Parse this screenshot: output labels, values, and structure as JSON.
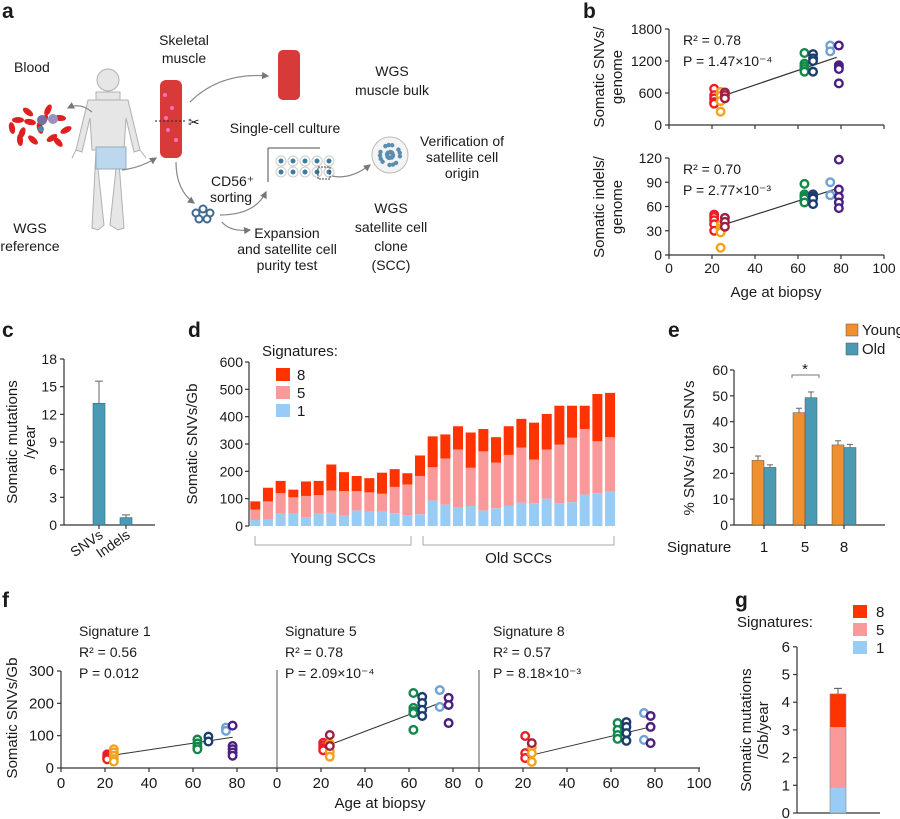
{
  "panel_labels": {
    "a": "a",
    "b": "b",
    "c": "c",
    "d": "d",
    "e": "e",
    "f": "f",
    "g": "g"
  },
  "panel_a": {
    "skeletal_muscle": [
      "Skeletal",
      "muscle"
    ],
    "blood": "Blood",
    "wgs_muscle_bulk": [
      "WGS",
      "muscle bulk"
    ],
    "single_cell_culture": "Single-cell culture",
    "verification": [
      "Verification of",
      "satellite cell",
      "origin"
    ],
    "cd56_sorting": [
      "CD56⁺",
      "sorting"
    ],
    "wgs_scc": [
      "WGS",
      "satellite cell",
      "clone",
      "(SCC)"
    ],
    "wgs_reference": [
      "WGS",
      "reference"
    ],
    "expansion": [
      "Expansion",
      "and satellite cell",
      "purity test"
    ]
  },
  "colors": {
    "donor_21y_a": "#ee1c25",
    "donor_24y": "#f7a11a",
    "donor_26y": "#9e1f3f",
    "donor_63y": "#13874a",
    "donor_67y": "#1a3c6e",
    "donor_75y": "#6ea1d4",
    "donor_79y": "#4b1f82",
    "signature_8": "#ff3300",
    "signature_5": "#f9999a",
    "signature_1": "#99ccf5",
    "bar_c": "#4a9ab3",
    "young": "#ef8f30",
    "old": "#4a9ab3"
  },
  "chart_data": [
    {
      "id": "b_snvs",
      "type": "scatter",
      "ylabel": [
        "Somatic SNVs/",
        "genome"
      ],
      "xlabel": "",
      "xlim": [
        0,
        100
      ],
      "ylim": [
        0,
        1800
      ],
      "yticks": [
        "0",
        "600",
        "1200",
        "1800"
      ],
      "stats": [
        "R² = 0.78",
        "P = 1.47×10⁻⁴"
      ],
      "fit": [
        [
          26,
          560
        ],
        [
          78,
          1270
        ]
      ],
      "groups": [
        {
          "age": 21,
          "color": "#ee1c25",
          "values": [
            680,
            560,
            500,
            430,
            400
          ]
        },
        {
          "age": 24,
          "color": "#f7a11a",
          "values": [
            620,
            550,
            450,
            250
          ]
        },
        {
          "age": 26,
          "color": "#9e1f3f",
          "values": [
            610,
            560,
            500
          ]
        },
        {
          "age": 63,
          "color": "#13874a",
          "values": [
            1350,
            1150,
            1100,
            1050,
            1000
          ]
        },
        {
          "age": 67,
          "color": "#1a3c6e",
          "values": [
            1330,
            1250,
            1200,
            1000
          ]
        },
        {
          "age": 75,
          "color": "#6ea1d4",
          "values": [
            1490,
            1380
          ]
        },
        {
          "age": 79,
          "color": "#4b1f82",
          "values": [
            1490,
            1120,
            1080,
            1050,
            780
          ]
        }
      ]
    },
    {
      "id": "b_indels",
      "type": "scatter",
      "ylabel": [
        "Somatic indels/",
        "genome"
      ],
      "xlabel": "Age at biopsy",
      "xlim": [
        0,
        100
      ],
      "ylim": [
        0,
        120
      ],
      "yticks": [
        "0",
        "30",
        "60",
        "90",
        "120"
      ],
      "xticks": [
        "0",
        "20",
        "40",
        "60",
        "80",
        "100"
      ],
      "stats": [
        "R² = 0.70",
        "P = 2.77×10⁻³"
      ],
      "fit": [
        [
          26,
          38
        ],
        [
          78,
          82
        ]
      ],
      "groups": [
        {
          "age": 21,
          "color": "#ee1c25",
          "values": [
            50,
            47,
            43,
            38,
            30
          ]
        },
        {
          "age": 24,
          "color": "#f7a11a",
          "values": [
            37,
            33,
            30,
            28,
            9
          ]
        },
        {
          "age": 26,
          "color": "#9e1f3f",
          "values": [
            46,
            41,
            35
          ]
        },
        {
          "age": 63,
          "color": "#13874a",
          "values": [
            88,
            75,
            72,
            70,
            65
          ]
        },
        {
          "age": 67,
          "color": "#1a3c6e",
          "values": [
            75,
            72,
            70,
            63
          ]
        },
        {
          "age": 75,
          "color": "#6ea1d4",
          "values": [
            90,
            74
          ]
        },
        {
          "age": 79,
          "color": "#4b1f82",
          "values": [
            118,
            81,
            72,
            65,
            58
          ]
        }
      ]
    },
    {
      "id": "c",
      "type": "bar",
      "ylabel": [
        "Somatic mutations",
        "/year"
      ],
      "categories": [
        "SNVs",
        "Indels"
      ],
      "values": [
        13.2,
        0.8
      ],
      "error_upper": [
        15.6,
        1.1
      ],
      "ylim": [
        0,
        18
      ],
      "yticks": [
        "0",
        "3",
        "6",
        "9",
        "12",
        "15",
        "18"
      ]
    },
    {
      "id": "d",
      "type": "bar",
      "stacked": true,
      "ylabel": "Somatic SNVs/Gb",
      "legend_title": "Signatures:",
      "ylim": [
        0,
        600
      ],
      "yticks": [
        "0",
        "100",
        "200",
        "300",
        "400",
        "500",
        "600"
      ],
      "groups": [
        {
          "label": "Young SCCs",
          "count": 13
        },
        {
          "label": "Old SCCs",
          "count": 16
        }
      ],
      "series": [
        {
          "name": "1",
          "color": "#99ccf5",
          "values": [
            22,
            23,
            45,
            45,
            32,
            45,
            48,
            38,
            57,
            52,
            55,
            47,
            40,
            43,
            93,
            78,
            68,
            73,
            57,
            65,
            75,
            85,
            83,
            100,
            83,
            87,
            115,
            120,
            128
          ]
        },
        {
          "name": "5",
          "color": "#f9999a",
          "values": [
            38,
            67,
            75,
            60,
            78,
            68,
            82,
            90,
            71,
            71,
            63,
            96,
            112,
            140,
            122,
            169,
            212,
            140,
            216,
            167,
            185,
            202,
            160,
            180,
            215,
            236,
            240,
            190,
            197
          ]
        },
        {
          "name": "8",
          "color": "#ff3300",
          "values": [
            30,
            50,
            45,
            28,
            53,
            52,
            95,
            69,
            55,
            52,
            77,
            65,
            41,
            75,
            113,
            88,
            85,
            129,
            82,
            93,
            105,
            105,
            135,
            130,
            142,
            117,
            85,
            173,
            162
          ]
        }
      ]
    },
    {
      "id": "e",
      "type": "bar",
      "ylabel": "% SNVs/ total SNVs",
      "xlabel": "Signature",
      "categories": [
        "1",
        "5",
        "8"
      ],
      "ylim": [
        0,
        60
      ],
      "yticks": [
        "0",
        "10",
        "20",
        "30",
        "40",
        "50",
        "60"
      ],
      "significance": {
        "categories": "5",
        "label": "*"
      },
      "series": [
        {
          "name": "Young",
          "color": "#ef8f30",
          "values": [
            25,
            43.5,
            31
          ],
          "error_upper": [
            26.7,
            45.2,
            32.6
          ]
        },
        {
          "name": "Old",
          "color": "#4a9ab3",
          "values": [
            22.3,
            49.3,
            30
          ],
          "error_upper": [
            23.3,
            51.5,
            31.2
          ]
        }
      ]
    },
    {
      "id": "f",
      "type": "scatter",
      "ylabel": "Somatic SNVs/Gb",
      "xlabel": "Age at biopsy",
      "ylim": [
        0,
        300
      ],
      "yticks": [
        "0",
        "100",
        "200",
        "300"
      ],
      "panels": [
        {
          "title": "Signature 1",
          "stats": [
            "R² = 0.56",
            "P = 0.012"
          ],
          "xlim": [
            0,
            80
          ],
          "xticks": [
            "0",
            "20",
            "40",
            "60",
            "80"
          ],
          "fit": [
            [
              24,
              40
            ],
            [
              78,
              95
            ]
          ],
          "groups": [
            {
              "age": 21,
              "color": "#ee1c25",
              "values": [
                42,
                36,
                30,
                27
              ]
            },
            {
              "age": 24,
              "color": "#f7a11a",
              "values": [
                58,
                48,
                38,
                28,
                20
              ]
            },
            {
              "age": 62,
              "color": "#13874a",
              "values": [
                88,
                76,
                66,
                58
              ]
            },
            {
              "age": 67,
              "color": "#1a3c6e",
              "values": [
                97,
                82
              ]
            },
            {
              "age": 75,
              "color": "#6ea1d4",
              "values": [
                125,
                115
              ]
            },
            {
              "age": 78,
              "color": "#4b1f82",
              "values": [
                131,
                68,
                58,
                48,
                38
              ]
            }
          ]
        },
        {
          "title": "Signature 5",
          "stats": [
            "R² = 0.78",
            "P = 2.09×10⁻⁴"
          ],
          "xlim": [
            0,
            80
          ],
          "xticks": [
            "0",
            "20",
            "40",
            "60",
            "80"
          ],
          "fit": [
            [
              24,
              72
            ],
            [
              74,
              201
            ]
          ],
          "groups": [
            {
              "age": 21,
              "color": "#ee1c25",
              "values": [
                78,
                70,
                62,
                55
              ]
            },
            {
              "age": 24,
              "color": "#f7a11a",
              "values": [
                75,
                50,
                35
              ]
            },
            {
              "age": 24,
              "color": "#9e1f3f",
              "values": [
                102,
                68
              ]
            },
            {
              "age": 62,
              "color": "#13874a",
              "values": [
                232,
                186,
                176,
                170,
                118
              ]
            },
            {
              "age": 66,
              "color": "#1a3c6e",
              "values": [
                220,
                201,
                180,
                161
              ]
            },
            {
              "age": 74,
              "color": "#6ea1d4",
              "values": [
                241,
                189
              ]
            },
            {
              "age": 78,
              "color": "#4b1f82",
              "values": [
                217,
                195,
                139
              ]
            }
          ]
        },
        {
          "title": "Signature 8",
          "stats": [
            "R² = 0.57",
            "P = 8.18×10⁻³"
          ],
          "xlim": [
            0,
            100
          ],
          "xticks": [
            "0",
            "20",
            "40",
            "60",
            "80",
            "100"
          ],
          "fit": [
            [
              24,
              40
            ],
            [
              78,
              127
            ]
          ],
          "groups": [
            {
              "age": 21,
              "color": "#ee1c25",
              "values": [
                99,
                46,
                31
              ]
            },
            {
              "age": 24,
              "color": "#f7a11a",
              "values": [
                65,
                46,
                19
              ]
            },
            {
              "age": 24,
              "color": "#9e1f3f",
              "values": [
                77
              ]
            },
            {
              "age": 63,
              "color": "#13874a",
              "values": [
                139,
                118,
                102,
                90
              ]
            },
            {
              "age": 67,
              "color": "#1a3c6e",
              "values": [
                142,
                127,
                108,
                84
              ]
            },
            {
              "age": 75,
              "color": "#6ea1d4",
              "values": [
                170,
                87
              ]
            },
            {
              "age": 78,
              "color": "#4b1f82",
              "values": [
                161,
                127,
                77
              ]
            }
          ]
        }
      ]
    },
    {
      "id": "g",
      "type": "bar",
      "stacked": true,
      "ylabel": [
        "Somatic mutations",
        "/Gb/year"
      ],
      "legend_title": "Signatures:",
      "ylim": [
        0,
        6
      ],
      "yticks": [
        "0",
        "1",
        "2",
        "3",
        "4",
        "5",
        "6"
      ],
      "series": [
        {
          "name": "1",
          "color": "#99ccf5",
          "value": 0.9,
          "error_upper": 1.05
        },
        {
          "name": "5",
          "color": "#f9999a",
          "value": 2.2,
          "error_upper": 3.4
        },
        {
          "name": "8",
          "color": "#ff3300",
          "value": 1.2,
          "error_upper": 4.5
        }
      ]
    }
  ]
}
